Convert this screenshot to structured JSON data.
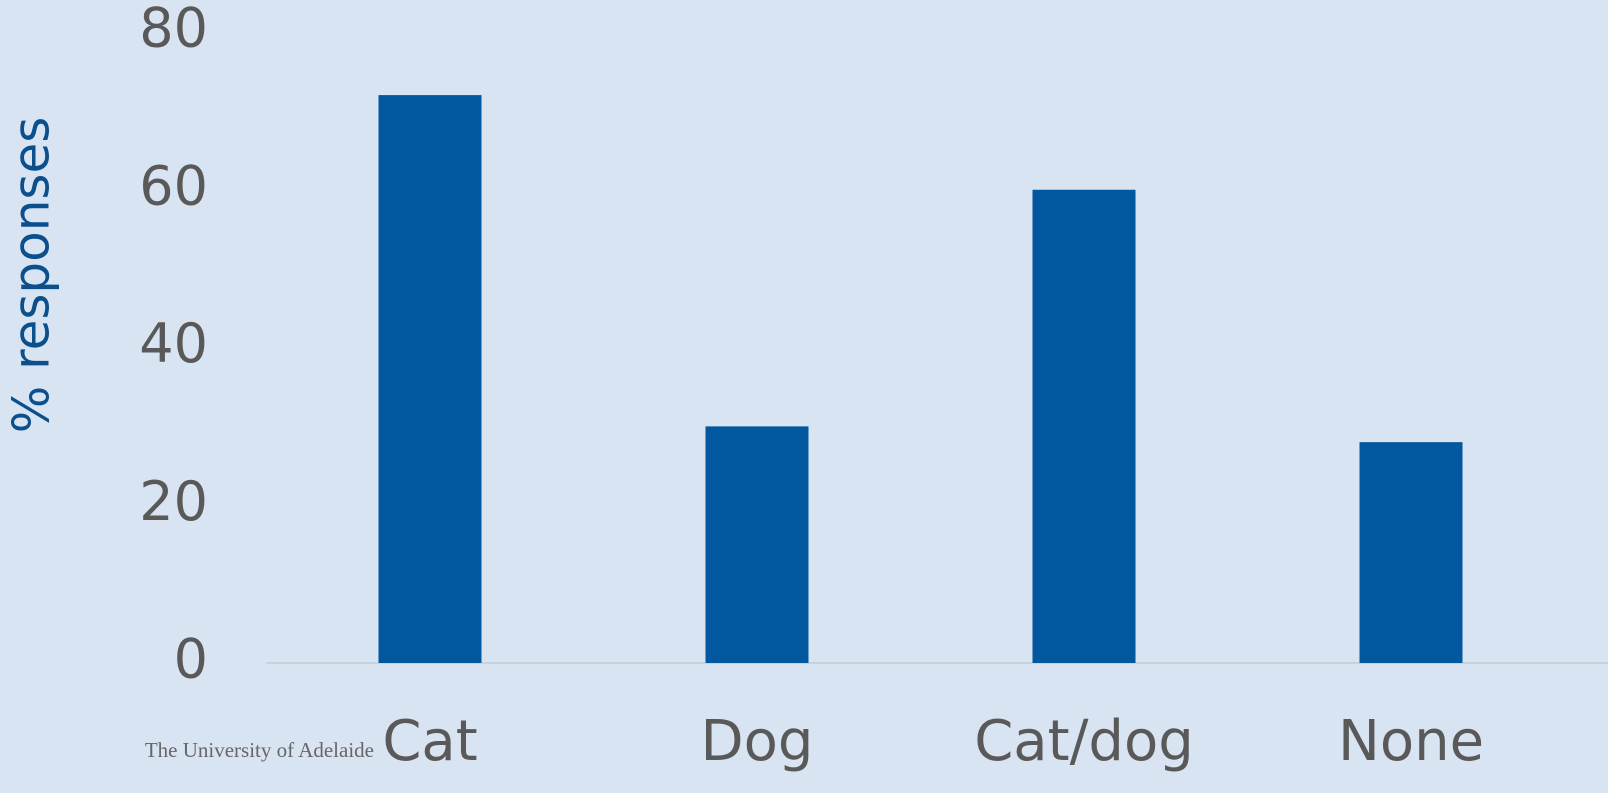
{
  "chart_data": {
    "type": "bar",
    "ylabel": "% responses",
    "categories": [
      "Cat",
      "Dog",
      "Cat/dog",
      "None"
    ],
    "values": [
      72,
      30,
      60,
      28
    ],
    "color": "#02589e",
    "ylim": [
      0,
      80
    ],
    "yticks": [
      0,
      20,
      40,
      60,
      80
    ],
    "grid": false
  },
  "footer": "The University of Adelaide"
}
